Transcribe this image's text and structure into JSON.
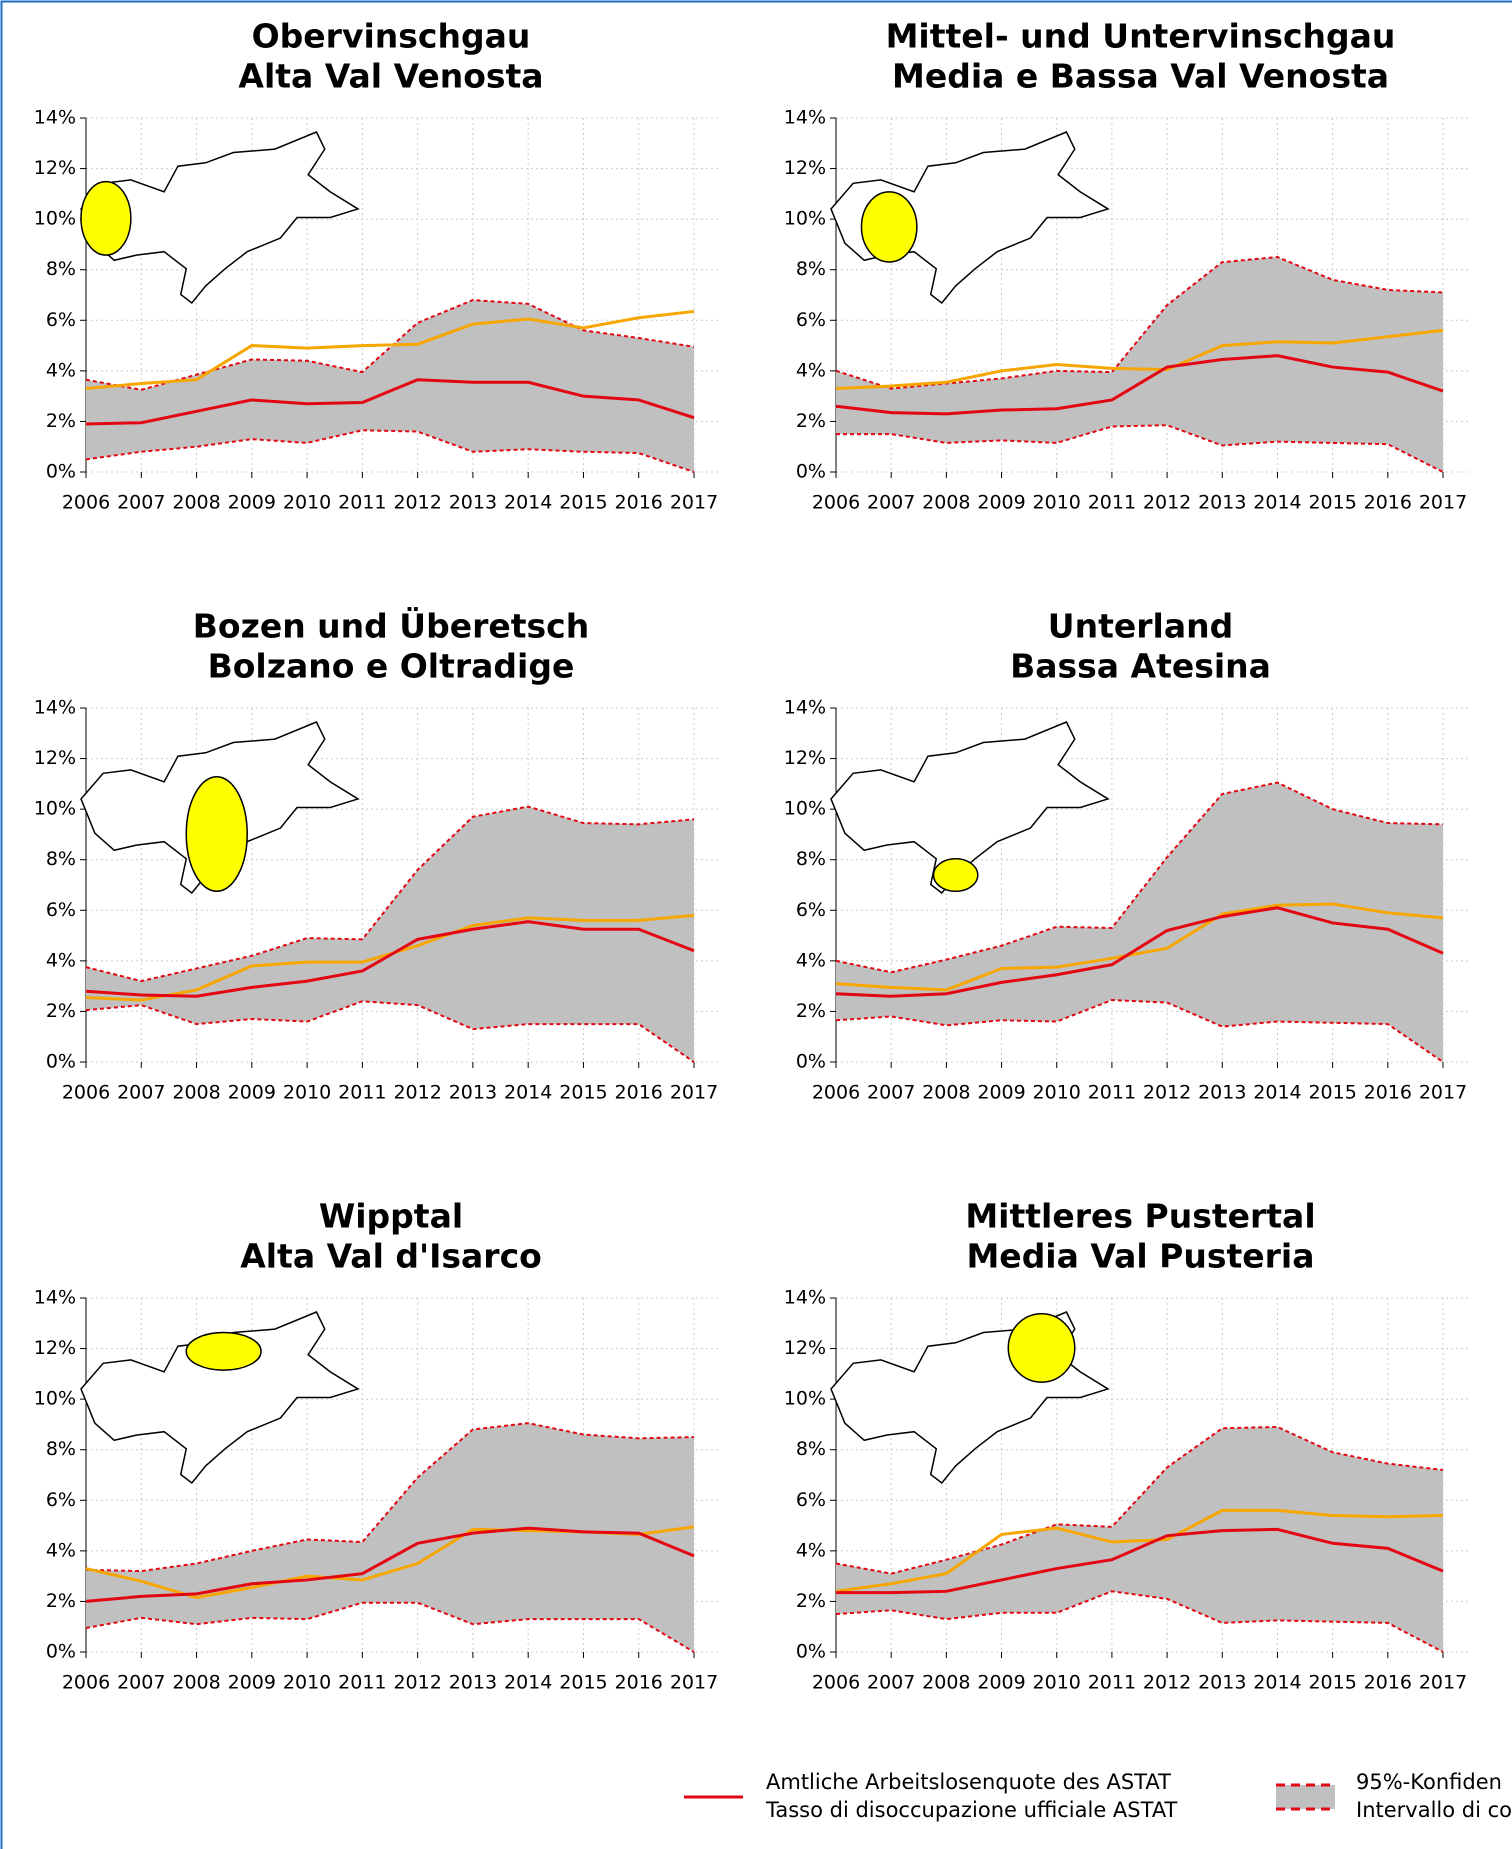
{
  "chart_data": [
    {
      "type": "line",
      "title": [
        "Obervinschgau",
        "Alta Val Venosta"
      ],
      "x": [
        2006,
        2007,
        2008,
        2009,
        2010,
        2011,
        2012,
        2013,
        2014,
        2015,
        2016,
        2017
      ],
      "xlim": [
        2006,
        2017
      ],
      "ylim": [
        0,
        14
      ],
      "yticks": [
        {
          "value": 0,
          "label": "0%"
        },
        {
          "value": 2,
          "label": "2%"
        },
        {
          "value": 4,
          "label": "4%"
        },
        {
          "value": 6,
          "label": "6%"
        },
        {
          "value": 8,
          "label": "8%"
        },
        {
          "value": 10,
          "label": "10%"
        },
        {
          "value": 12,
          "label": "12%"
        },
        {
          "value": 14,
          "label": "14%"
        }
      ],
      "grid": true,
      "series": [
        {
          "color": "#e30613",
          "values": [
            1.9,
            1.95,
            2.4,
            2.85,
            2.7,
            2.75,
            3.65,
            3.55,
            3.55,
            3.0,
            2.85,
            2.15
          ]
        },
        {
          "color": "#f7a600",
          "values": [
            3.3,
            3.5,
            3.65,
            5.0,
            4.9,
            5.0,
            5.05,
            5.85,
            6.05,
            5.7,
            6.1,
            6.35
          ]
        }
      ],
      "band": {
        "color": "#c0c0c0",
        "line_color": "#e30613",
        "upper": [
          3.65,
          3.25,
          3.85,
          4.45,
          4.4,
          3.95,
          5.9,
          6.8,
          6.65,
          5.6,
          5.3,
          4.95
        ],
        "lower": [
          0.5,
          0.8,
          1.0,
          1.3,
          1.15,
          1.65,
          1.6,
          0.8,
          0.9,
          0.8,
          0.75,
          0.0
        ]
      }
    },
    {
      "type": "line",
      "title": [
        "Mittel- und Untervinschgau",
        "Media e Bassa Val Venosta"
      ],
      "x": [
        2006,
        2007,
        2008,
        2009,
        2010,
        2011,
        2012,
        2013,
        2014,
        2015,
        2016,
        2017
      ],
      "xlim": [
        2006,
        2017
      ],
      "ylim": [
        0,
        14
      ],
      "yticks": [
        {
          "value": 0,
          "label": "0%"
        },
        {
          "value": 2,
          "label": "2%"
        },
        {
          "value": 4,
          "label": "4%"
        },
        {
          "value": 6,
          "label": "6%"
        },
        {
          "value": 8,
          "label": "8%"
        },
        {
          "value": 10,
          "label": "10%"
        },
        {
          "value": 12,
          "label": "12%"
        },
        {
          "value": 14,
          "label": "14%"
        }
      ],
      "grid": true,
      "series": [
        {
          "color": "#e30613",
          "values": [
            2.6,
            2.35,
            2.3,
            2.45,
            2.5,
            2.85,
            4.15,
            4.45,
            4.6,
            4.15,
            3.95,
            3.2
          ]
        },
        {
          "color": "#f7a600",
          "values": [
            3.3,
            3.4,
            3.55,
            4.0,
            4.25,
            4.1,
            4.05,
            5.0,
            5.15,
            5.1,
            5.35,
            5.6
          ]
        }
      ],
      "band": {
        "color": "#c0c0c0",
        "line_color": "#e30613",
        "upper": [
          4.0,
          3.3,
          3.5,
          3.7,
          4.0,
          3.95,
          6.6,
          8.3,
          8.5,
          7.6,
          7.2,
          7.1
        ],
        "lower": [
          1.5,
          1.5,
          1.15,
          1.25,
          1.15,
          1.8,
          1.85,
          1.05,
          1.2,
          1.15,
          1.1,
          0.0
        ]
      }
    },
    {
      "type": "line",
      "title": [
        "Bozen und Überetsch",
        "Bolzano e Oltradige"
      ],
      "x": [
        2006,
        2007,
        2008,
        2009,
        2010,
        2011,
        2012,
        2013,
        2014,
        2015,
        2016,
        2017
      ],
      "xlim": [
        2006,
        2017
      ],
      "ylim": [
        0,
        14
      ],
      "yticks": [
        {
          "value": 0,
          "label": "0%"
        },
        {
          "value": 2,
          "label": "2%"
        },
        {
          "value": 4,
          "label": "4%"
        },
        {
          "value": 6,
          "label": "6%"
        },
        {
          "value": 8,
          "label": "8%"
        },
        {
          "value": 10,
          "label": "10%"
        },
        {
          "value": 12,
          "label": "12%"
        },
        {
          "value": 14,
          "label": "14%"
        }
      ],
      "grid": true,
      "series": [
        {
          "color": "#e30613",
          "values": [
            2.8,
            2.65,
            2.6,
            2.95,
            3.2,
            3.6,
            4.85,
            5.25,
            5.55,
            5.25,
            5.25,
            4.4
          ]
        },
        {
          "color": "#f7a600",
          "values": [
            2.55,
            2.45,
            2.85,
            3.8,
            3.95,
            3.95,
            4.6,
            5.4,
            5.7,
            5.6,
            5.6,
            5.8
          ]
        }
      ],
      "band": {
        "color": "#c0c0c0",
        "line_color": "#e30613",
        "upper": [
          3.75,
          3.2,
          3.7,
          4.2,
          4.9,
          4.85,
          7.6,
          9.7,
          10.1,
          9.45,
          9.4,
          9.6
        ],
        "lower": [
          2.05,
          2.25,
          1.5,
          1.7,
          1.6,
          2.4,
          2.25,
          1.3,
          1.5,
          1.5,
          1.5,
          0.0
        ]
      }
    },
    {
      "type": "line",
      "title": [
        "Unterland",
        "Bassa Atesina"
      ],
      "x": [
        2006,
        2007,
        2008,
        2009,
        2010,
        2011,
        2012,
        2013,
        2014,
        2015,
        2016,
        2017
      ],
      "xlim": [
        2006,
        2017
      ],
      "ylim": [
        0,
        14
      ],
      "yticks": [
        {
          "value": 0,
          "label": "0%"
        },
        {
          "value": 2,
          "label": "2%"
        },
        {
          "value": 4,
          "label": "4%"
        },
        {
          "value": 6,
          "label": "6%"
        },
        {
          "value": 8,
          "label": "8%"
        },
        {
          "value": 10,
          "label": "10%"
        },
        {
          "value": 12,
          "label": "12%"
        },
        {
          "value": 14,
          "label": "14%"
        }
      ],
      "grid": true,
      "series": [
        {
          "color": "#e30613",
          "values": [
            2.7,
            2.6,
            2.7,
            3.15,
            3.45,
            3.85,
            5.2,
            5.75,
            6.1,
            5.5,
            5.25,
            4.3
          ]
        },
        {
          "color": "#f7a600",
          "values": [
            3.1,
            2.95,
            2.85,
            3.7,
            3.75,
            4.1,
            4.5,
            5.85,
            6.2,
            6.25,
            5.9,
            5.7
          ]
        }
      ],
      "band": {
        "color": "#c0c0c0",
        "line_color": "#e30613",
        "upper": [
          4.0,
          3.55,
          4.05,
          4.6,
          5.35,
          5.3,
          8.1,
          10.6,
          11.05,
          10.0,
          9.45,
          9.4
        ],
        "lower": [
          1.65,
          1.8,
          1.45,
          1.65,
          1.6,
          2.45,
          2.35,
          1.4,
          1.6,
          1.55,
          1.5,
          0.0
        ]
      }
    },
    {
      "type": "line",
      "title": [
        "Wipptal",
        "Alta Val d'Isarco"
      ],
      "x": [
        2006,
        2007,
        2008,
        2009,
        2010,
        2011,
        2012,
        2013,
        2014,
        2015,
        2016,
        2017
      ],
      "xlim": [
        2006,
        2017
      ],
      "ylim": [
        0,
        14
      ],
      "yticks": [
        {
          "value": 0,
          "label": "0%"
        },
        {
          "value": 2,
          "label": "2%"
        },
        {
          "value": 4,
          "label": "4%"
        },
        {
          "value": 6,
          "label": "6%"
        },
        {
          "value": 8,
          "label": "8%"
        },
        {
          "value": 10,
          "label": "10%"
        },
        {
          "value": 12,
          "label": "12%"
        },
        {
          "value": 14,
          "label": "14%"
        }
      ],
      "grid": true,
      "series": [
        {
          "color": "#e30613",
          "values": [
            2.0,
            2.2,
            2.3,
            2.7,
            2.85,
            3.1,
            4.3,
            4.7,
            4.9,
            4.75,
            4.7,
            3.8
          ]
        },
        {
          "color": "#f7a600",
          "values": [
            3.3,
            2.8,
            2.15,
            2.55,
            3.0,
            2.85,
            3.5,
            4.85,
            4.8,
            4.75,
            4.65,
            4.95
          ]
        }
      ],
      "band": {
        "color": "#c0c0c0",
        "line_color": "#e30613",
        "upper": [
          3.25,
          3.2,
          3.5,
          4.0,
          4.45,
          4.35,
          6.9,
          8.8,
          9.05,
          8.6,
          8.45,
          8.5
        ],
        "lower": [
          0.95,
          1.35,
          1.1,
          1.35,
          1.3,
          1.95,
          1.95,
          1.1,
          1.3,
          1.3,
          1.3,
          0.0
        ]
      }
    },
    {
      "type": "line",
      "title": [
        "Mittleres Pustertal",
        "Media Val Pusteria"
      ],
      "x": [
        2006,
        2007,
        2008,
        2009,
        2010,
        2011,
        2012,
        2013,
        2014,
        2015,
        2016,
        2017
      ],
      "xlim": [
        2006,
        2017
      ],
      "ylim": [
        0,
        14
      ],
      "yticks": [
        {
          "value": 0,
          "label": "0%"
        },
        {
          "value": 2,
          "label": "2%"
        },
        {
          "value": 4,
          "label": "4%"
        },
        {
          "value": 6,
          "label": "6%"
        },
        {
          "value": 8,
          "label": "8%"
        },
        {
          "value": 10,
          "label": "10%"
        },
        {
          "value": 12,
          "label": "12%"
        },
        {
          "value": 14,
          "label": "14%"
        }
      ],
      "grid": true,
      "series": [
        {
          "color": "#e30613",
          "values": [
            2.35,
            2.35,
            2.4,
            2.85,
            3.3,
            3.65,
            4.6,
            4.8,
            4.85,
            4.3,
            4.1,
            3.2
          ]
        },
        {
          "color": "#f7a600",
          "values": [
            2.4,
            2.7,
            3.1,
            4.65,
            4.9,
            4.35,
            4.45,
            5.6,
            5.6,
            5.4,
            5.35,
            5.4
          ]
        }
      ],
      "band": {
        "color": "#c0c0c0",
        "line_color": "#e30613",
        "upper": [
          3.5,
          3.1,
          3.65,
          4.25,
          5.05,
          4.95,
          7.3,
          8.85,
          8.9,
          7.9,
          7.45,
          7.2
        ],
        "lower": [
          1.5,
          1.65,
          1.3,
          1.55,
          1.55,
          2.4,
          2.1,
          1.15,
          1.25,
          1.2,
          1.15,
          0.0
        ]
      }
    }
  ],
  "legend": {
    "official": [
      "Amtliche Arbeitslosenquote des ASTAT",
      "Tasso di disoccupazione ufficiale ASTAT"
    ],
    "interval": [
      "95%-Konfiden",
      "Intervallo di co"
    ]
  }
}
